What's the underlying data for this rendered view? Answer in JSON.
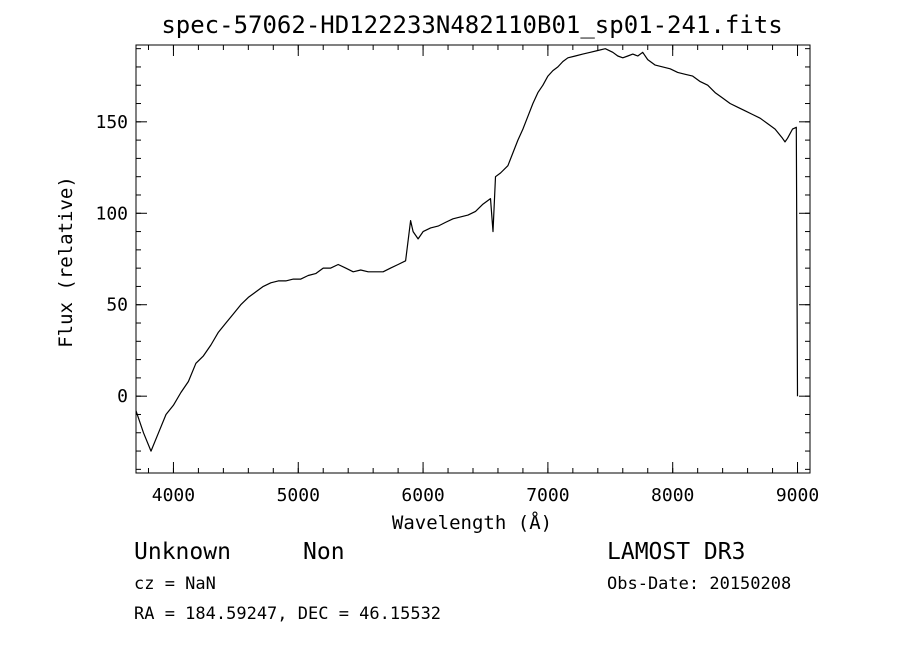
{
  "chart_data": {
    "type": "line",
    "title": "spec-57062-HD122233N482110B01_sp01-241.fits",
    "xlabel": "Wavelength (Å)",
    "ylabel": "Flux (relative)",
    "xlim": [
      3700,
      9100
    ],
    "ylim": [
      -42,
      192
    ],
    "xticks": [
      {
        "value": 4000,
        "label": "4000"
      },
      {
        "value": 5000,
        "label": "5000"
      },
      {
        "value": 6000,
        "label": "6000"
      },
      {
        "value": 7000,
        "label": "7000"
      },
      {
        "value": 8000,
        "label": "8000"
      },
      {
        "value": 9000,
        "label": "9000"
      }
    ],
    "yticks": [
      {
        "value": 0,
        "label": "0"
      },
      {
        "value": 50,
        "label": "50"
      },
      {
        "value": 100,
        "label": "100"
      },
      {
        "value": 150,
        "label": "150"
      }
    ],
    "x_minor_step": 200,
    "y_minor_step": 10,
    "grid": false,
    "series": [
      {
        "color": "#000000",
        "x": [
          3700,
          3760,
          3820,
          3880,
          3940,
          4000,
          4060,
          4120,
          4180,
          4240,
          4300,
          4360,
          4420,
          4480,
          4540,
          4600,
          4660,
          4720,
          4780,
          4840,
          4900,
          4960,
          5020,
          5080,
          5140,
          5200,
          5260,
          5320,
          5380,
          5440,
          5500,
          5560,
          5620,
          5680,
          5740,
          5800,
          5860,
          5900,
          5920,
          5960,
          6000,
          6060,
          6120,
          6180,
          6240,
          6300,
          6360,
          6420,
          6480,
          6540,
          6560,
          6580,
          6620,
          6680,
          6720,
          6760,
          6800,
          6840,
          6880,
          6920,
          6960,
          7000,
          7040,
          7080,
          7120,
          7160,
          7220,
          7280,
          7340,
          7400,
          7460,
          7520,
          7560,
          7600,
          7640,
          7680,
          7720,
          7760,
          7800,
          7860,
          7920,
          7980,
          8040,
          8100,
          8160,
          8220,
          8280,
          8340,
          8400,
          8460,
          8520,
          8580,
          8640,
          8700,
          8760,
          8820,
          8880,
          8900,
          8920,
          8960,
          8990,
          9000
        ],
        "y": [
          -8,
          -20,
          -30,
          -20,
          -10,
          -5,
          2,
          8,
          18,
          22,
          28,
          35,
          40,
          45,
          50,
          54,
          57,
          60,
          62,
          63,
          63,
          64,
          64,
          66,
          67,
          70,
          70,
          72,
          70,
          68,
          69,
          68,
          68,
          68,
          70,
          72,
          74,
          96,
          90,
          86,
          90,
          92,
          93,
          95,
          97,
          98,
          99,
          101,
          105,
          108,
          90,
          120,
          122,
          126,
          133,
          140,
          146,
          153,
          160,
          166,
          170,
          175,
          178,
          180,
          183,
          185,
          186,
          187,
          188,
          189,
          190,
          188,
          186,
          185,
          186,
          187,
          186,
          188,
          184,
          181,
          180,
          179,
          177,
          176,
          175,
          172,
          170,
          166,
          163,
          160,
          158,
          156,
          154,
          152,
          149,
          146,
          141,
          139,
          141,
          146,
          147,
          0
        ]
      }
    ]
  },
  "annotations": {
    "object_class": "Unknown",
    "object_subclass": "Non",
    "survey": "LAMOST DR3",
    "redshift": "cz = NaN",
    "obs_date": "Obs-Date: 20150208",
    "coords": "RA = 184.59247, DEC =  46.15532"
  }
}
